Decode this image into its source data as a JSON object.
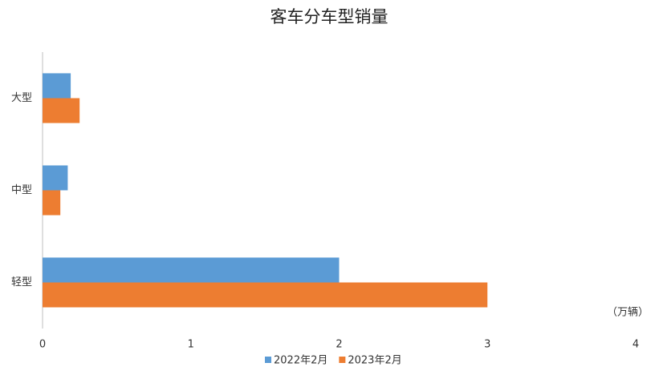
{
  "chart_data": {
    "type": "barh",
    "title": "客车分车型销量",
    "categories": [
      "大型",
      "中型",
      "轻型"
    ],
    "series": [
      {
        "name": "2022年2月",
        "color": "#5b9bd5",
        "values": [
          0.19,
          0.17,
          2.0
        ]
      },
      {
        "name": "2023年2月",
        "color": "#ed7d31",
        "values": [
          0.25,
          0.12,
          3.0
        ]
      }
    ],
    "xlim": [
      0,
      4
    ],
    "xticks": [
      0,
      1,
      2,
      3,
      4
    ],
    "annotation": "（万辆）",
    "legend": "bottom",
    "grid": false
  }
}
